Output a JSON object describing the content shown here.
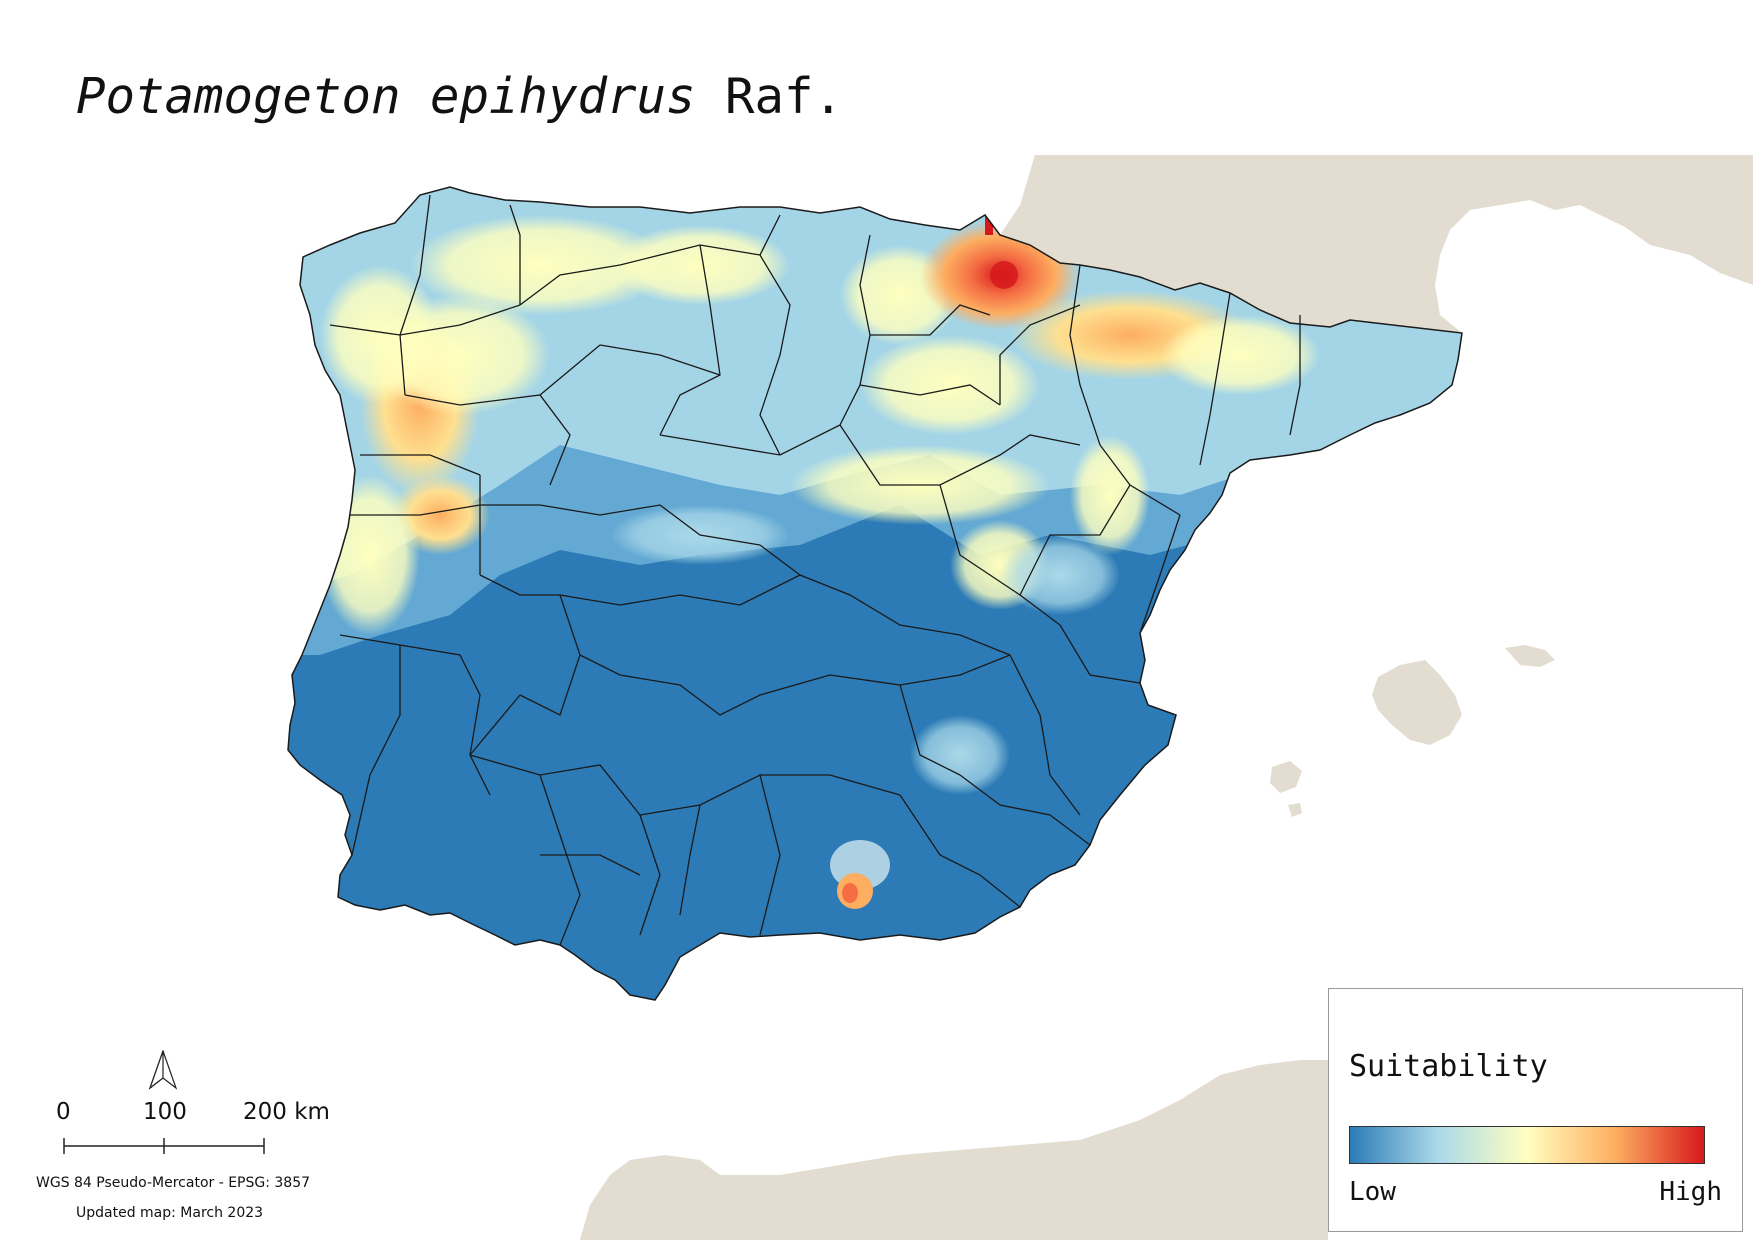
{
  "title": {
    "species": "Potamogeton epihydrus",
    "author": "Raf."
  },
  "legend": {
    "title": "Suitability",
    "low_label": "Low",
    "high_label": "High",
    "ramp_colors": [
      "#2c7bb6",
      "#abd9e9",
      "#ffffbf",
      "#fdae61",
      "#d7191c"
    ]
  },
  "scale": {
    "labels": [
      "0",
      "100",
      "200 km"
    ]
  },
  "crs_text": "WGS 84 Pseudo-Mercator  - EPSG: 3857",
  "updated_text": "Updated map: March 2023",
  "colors": {
    "land_background": "#e2ddd0",
    "sea": "#ffffff",
    "low": "#2c7bb6",
    "lowmid": "#abd9e9",
    "mid": "#ffffbf",
    "midhigh": "#fdae61",
    "high": "#d7191c"
  },
  "icons": {
    "north_arrow": "north-arrow-icon"
  }
}
